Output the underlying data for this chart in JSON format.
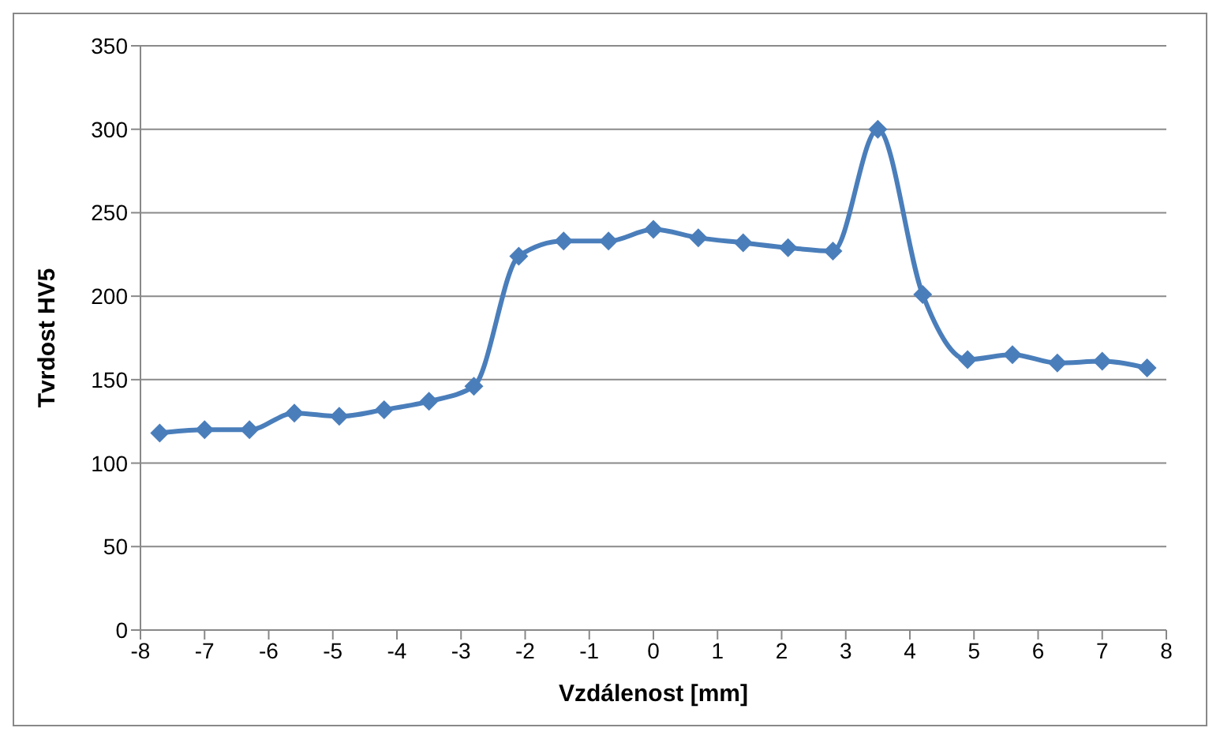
{
  "chart_data": {
    "type": "line",
    "xlabel": "Vzdálenost [mm]",
    "ylabel": "Tvrdost HV5",
    "x": [
      -7.7,
      -7.0,
      -6.3,
      -5.6,
      -4.9,
      -4.2,
      -3.5,
      -2.8,
      -2.1,
      -1.4,
      -0.7,
      0,
      0.7,
      1.4,
      2.1,
      2.8,
      3.5,
      4.2,
      4.9,
      5.6,
      6.3,
      7.0,
      7.7
    ],
    "series": [
      {
        "color": "#4a7ebb",
        "values": [
          118,
          120,
          120,
          130,
          128,
          132,
          137,
          146,
          224,
          233,
          233,
          240,
          235,
          232,
          229,
          227,
          300,
          201,
          162,
          165,
          160,
          161,
          157
        ]
      }
    ],
    "xlim": [
      -8,
      8
    ],
    "xticks": [
      -8,
      -7,
      -6,
      -5,
      -4,
      -3,
      -2,
      -1,
      0,
      1,
      2,
      3,
      4,
      5,
      6,
      7,
      8
    ],
    "ylim": [
      0,
      350
    ],
    "yticks": [
      0,
      50,
      100,
      150,
      200,
      250,
      300,
      350
    ],
    "grid": "y",
    "legend": false,
    "marker": "diamond",
    "line_style": "solid"
  }
}
